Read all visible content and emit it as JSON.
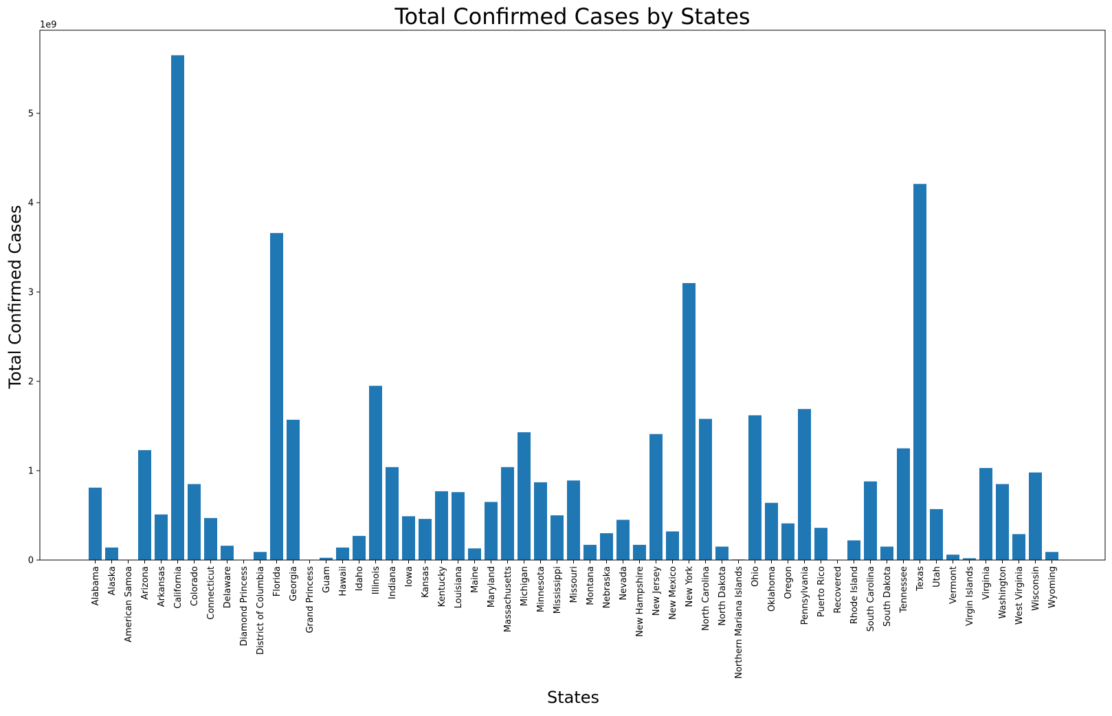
{
  "chart_data": {
    "type": "bar",
    "title": "Total Confirmed Cases by States",
    "xlabel": "States",
    "ylabel": "Total Confirmed Cases",
    "y_scale_label": "1e9",
    "ylim": [
      0,
      5.93
    ],
    "yticks": [
      0,
      1,
      2,
      3,
      4,
      5
    ],
    "grid": false,
    "bar_color": "#1f77b4",
    "categories": [
      "Alabama",
      "Alaska",
      "American Samoa",
      "Arizona",
      "Arkansas",
      "California",
      "Colorado",
      "Connecticut",
      "Delaware",
      "Diamond Princess",
      "District of Columbia",
      "Florida",
      "Georgia",
      "Grand Princess",
      "Guam",
      "Hawaii",
      "Idaho",
      "Illinois",
      "Indiana",
      "Iowa",
      "Kansas",
      "Kentucky",
      "Louisiana",
      "Maine",
      "Maryland",
      "Massachusetts",
      "Michigan",
      "Minnesota",
      "Mississippi",
      "Missouri",
      "Montana",
      "Nebraska",
      "Nevada",
      "New Hampshire",
      "New Jersey",
      "New Mexico",
      "New York",
      "North Carolina",
      "North Dakota",
      "Northern Mariana Islands",
      "Ohio",
      "Oklahoma",
      "Oregon",
      "Pennsylvania",
      "Puerto Rico",
      "Recovered",
      "Rhode Island",
      "South Carolina",
      "South Dakota",
      "Tennessee",
      "Texas",
      "Utah",
      "Vermont",
      "Virgin Islands",
      "Virginia",
      "Washington",
      "West Virginia",
      "Wisconsin",
      "Wyoming"
    ],
    "values": [
      0.81,
      0.14,
      0.004,
      1.23,
      0.51,
      5.65,
      0.85,
      0.47,
      0.16,
      0.002,
      0.09,
      3.66,
      1.57,
      0.002,
      0.025,
      0.14,
      0.27,
      1.95,
      1.04,
      0.49,
      0.46,
      0.77,
      0.76,
      0.13,
      0.65,
      1.04,
      1.43,
      0.87,
      0.5,
      0.89,
      0.17,
      0.3,
      0.45,
      0.17,
      1.41,
      0.32,
      3.1,
      1.58,
      0.15,
      0.006,
      1.62,
      0.64,
      0.41,
      1.69,
      0.36,
      0.0,
      0.22,
      0.88,
      0.15,
      1.25,
      4.21,
      0.57,
      0.06,
      0.02,
      1.03,
      0.85,
      0.29,
      0.98,
      0.09
    ]
  }
}
